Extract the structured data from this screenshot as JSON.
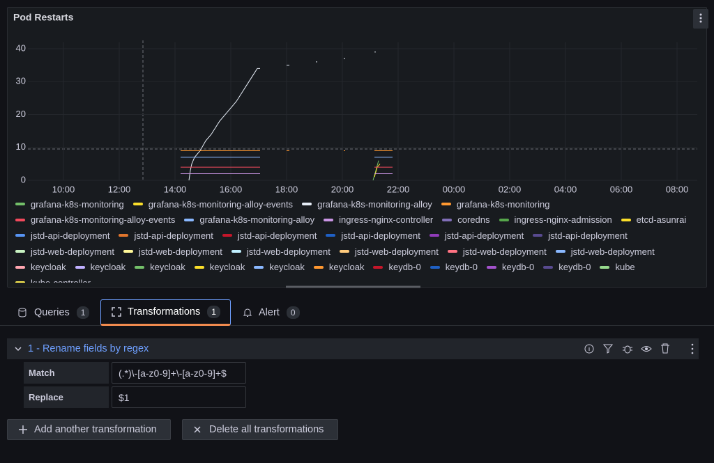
{
  "panel": {
    "title": "Pod Restarts"
  },
  "chart_data": {
    "type": "line",
    "xlim": [
      8.725,
      32.725
    ],
    "xticks": [
      {
        "value": 10,
        "label": "10:00"
      },
      {
        "value": 12,
        "label": "12:00"
      },
      {
        "value": 14,
        "label": "14:00"
      },
      {
        "value": 16,
        "label": "16:00"
      },
      {
        "value": 18,
        "label": "18:00"
      },
      {
        "value": 20,
        "label": "20:00"
      },
      {
        "value": 22,
        "label": "22:00"
      },
      {
        "value": 24,
        "label": "00:00"
      },
      {
        "value": 26,
        "label": "02:00"
      },
      {
        "value": 28,
        "label": "04:00"
      },
      {
        "value": 30,
        "label": "06:00"
      },
      {
        "value": 32,
        "label": "08:00"
      }
    ],
    "ylim": [
      0,
      42
    ],
    "yticks": [
      0,
      10,
      20,
      30,
      40
    ],
    "grid": true,
    "series": [
      {
        "name": "grafana-k8s-monitoring",
        "color": "#73bf69",
        "x": [
          21.1,
          21.2,
          21.3
        ],
        "values": [
          0,
          3,
          6
        ]
      },
      {
        "name": "grafana-k8s-monitoring-alloy-events",
        "color": "#fade2a",
        "x": [
          21.15,
          21.25,
          21.35
        ],
        "values": [
          1,
          4,
          5
        ]
      },
      {
        "name": "grafana-k8s-monitoring-alloy",
        "color": "#e6edf7",
        "x": [
          14.5,
          14.55,
          14.6,
          14.7,
          14.9,
          15.1,
          15.3,
          15.6,
          15.9,
          16.2,
          16.5,
          16.8,
          16.95,
          17.05,
          17.5,
          18.0,
          18.1,
          18.5,
          19.05,
          19.1,
          19.5,
          20.05,
          20.1,
          20.5,
          21.15,
          21.2
        ],
        "values": [
          0,
          3,
          5,
          7,
          9,
          12,
          14,
          18,
          21,
          24,
          28,
          32,
          34,
          34,
          null,
          35,
          35,
          null,
          36,
          36,
          null,
          37,
          37,
          null,
          39,
          39
        ]
      },
      {
        "name": "grafana-k8s-monitoring",
        "color": "#ff9830",
        "x": [
          14.2,
          17.05,
          17.5,
          18.0,
          18.1,
          18.5,
          20.05,
          20.1,
          20.5,
          21.15,
          21.8
        ],
        "values": [
          9,
          9,
          null,
          9,
          9,
          null,
          9,
          9,
          null,
          9,
          9
        ]
      },
      {
        "name": "grafana-k8s-monitoring-alloy-events",
        "color": "#f2495c",
        "x": [
          14.2,
          17.05,
          17.5,
          21.15,
          21.8
        ],
        "values": [
          4,
          4,
          null,
          4,
          4
        ]
      },
      {
        "name": "grafana-k8s-monitoring-alloy",
        "color": "#8ab8ff",
        "x": [
          14.2,
          17.05,
          17.5,
          21.15,
          21.8
        ],
        "values": [
          7,
          7,
          null,
          7,
          7
        ]
      },
      {
        "name": "ingress-nginx-controller",
        "color": "#ca95e5",
        "x": [
          14.2,
          17.05,
          17.5,
          21.15,
          21.8
        ],
        "values": [
          2,
          2,
          null,
          2,
          2
        ]
      },
      {
        "name": "coredns",
        "color": "#806eb7"
      },
      {
        "name": "ingress-nginx-admission",
        "color": "#56a64b"
      },
      {
        "name": "etcd-asunrai",
        "color": "#fade2a"
      },
      {
        "name": "jstd-api-deployment",
        "color": "#5794f2"
      },
      {
        "name": "jstd-api-deployment",
        "color": "#e0752d"
      },
      {
        "name": "jstd-api-deployment",
        "color": "#c4162a"
      },
      {
        "name": "jstd-api-deployment",
        "color": "#1f60c4"
      },
      {
        "name": "jstd-api-deployment",
        "color": "#8f3bb8"
      },
      {
        "name": "jstd-api-deployment",
        "color": "#584a8f"
      },
      {
        "name": "jstd-web-deployment",
        "color": "#c8f2c2"
      },
      {
        "name": "jstd-web-deployment",
        "color": "#fff899"
      },
      {
        "name": "jstd-web-deployment",
        "color": "#c0f0ff"
      },
      {
        "name": "jstd-web-deployment",
        "color": "#ffcb7d"
      },
      {
        "name": "jstd-web-deployment",
        "color": "#ff7383"
      },
      {
        "name": "jstd-web-deployment",
        "color": "#8ab8ff"
      },
      {
        "name": "keycloak",
        "color": "#ffa6b0"
      },
      {
        "name": "keycloak",
        "color": "#c0b0ff"
      },
      {
        "name": "keycloak",
        "color": "#73bf69"
      },
      {
        "name": "keycloak",
        "color": "#fade2a"
      },
      {
        "name": "keycloak",
        "color": "#8ab8ff"
      },
      {
        "name": "keycloak",
        "color": "#ff9830"
      },
      {
        "name": "keydb-0",
        "color": "#c4162a"
      },
      {
        "name": "keydb-0",
        "color": "#1f60c4"
      },
      {
        "name": "keydb-0",
        "color": "#a352cc"
      },
      {
        "name": "keydb-0",
        "color": "#584a8f"
      },
      {
        "name": "kube",
        "color": "#96d98d"
      },
      {
        "name": "kube-controller",
        "color": "#ffee52"
      }
    ]
  },
  "tabs": [
    {
      "label": "Queries",
      "count": 1
    },
    {
      "label": "Transformations",
      "count": 1
    },
    {
      "label": "Alert",
      "count": 0
    }
  ],
  "transformation": {
    "title": "1 - Rename fields by regex",
    "fields": [
      {
        "label": "Match",
        "value": "(.*)\\-[a-z0-9]+\\-[a-z0-9]+$"
      },
      {
        "label": "Replace",
        "value": "$1"
      }
    ]
  },
  "buttons": {
    "add": "Add another transformation",
    "delete": "Delete all transformations"
  }
}
